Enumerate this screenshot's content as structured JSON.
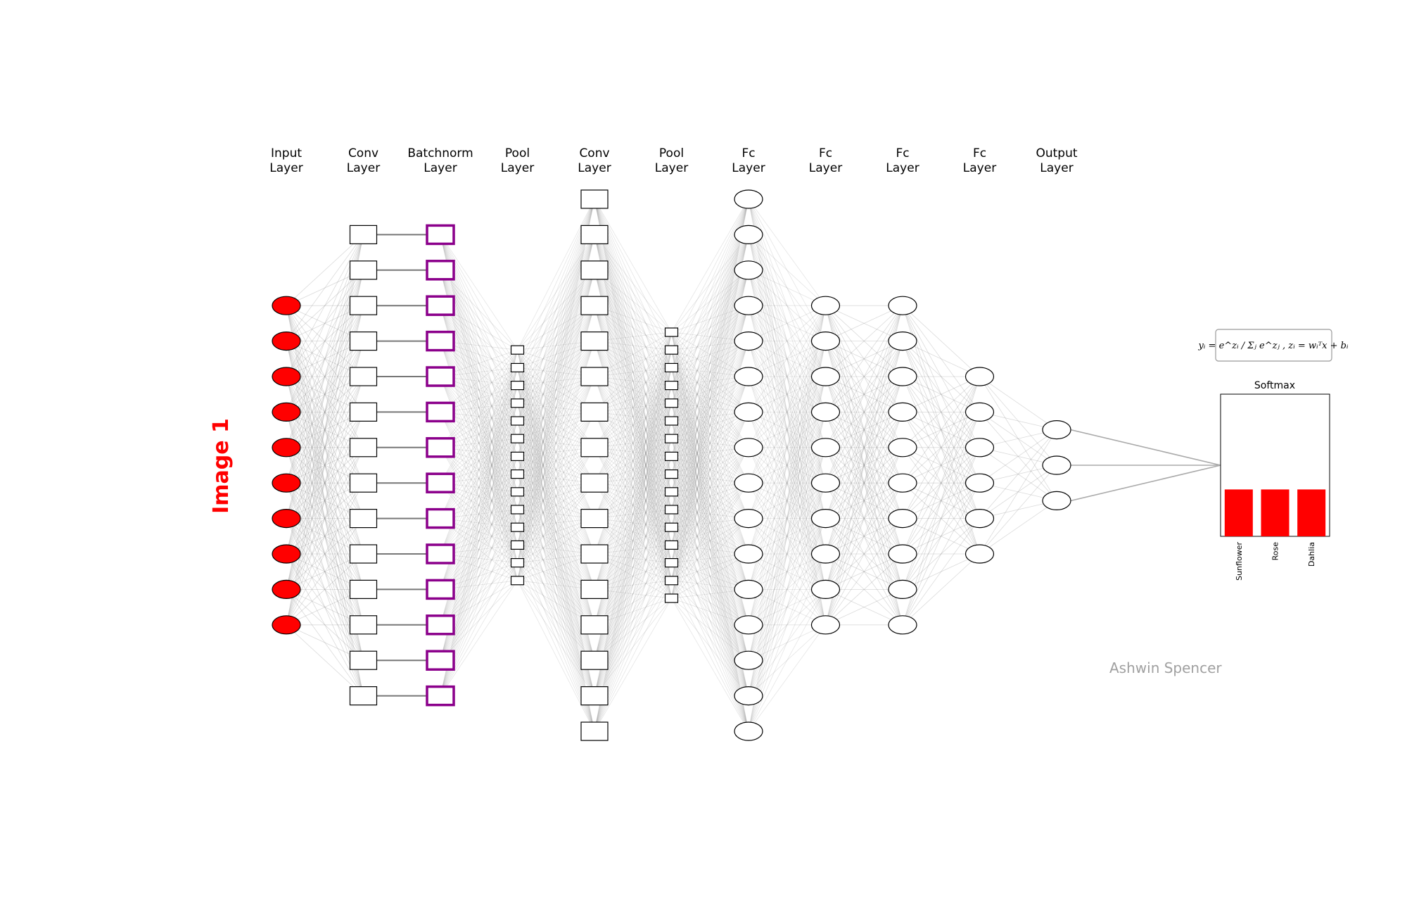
{
  "side_label": "Image 1",
  "watermark": "Ashwin Spencer",
  "colors": {
    "input_fill": "#ff0000",
    "batchnorm_stroke": "#8b008b",
    "edge": "#888888",
    "label_red": "#ff0000",
    "watermark": "#a0a0a0",
    "bar": "#ff0000"
  },
  "layers": [
    {
      "title": [
        "Input",
        "Layer"
      ],
      "shape": "ellipse-filled",
      "count": 10
    },
    {
      "title": [
        "Conv",
        "Layer"
      ],
      "shape": "rect",
      "count": 14
    },
    {
      "title": [
        "Batchnorm",
        "Layer"
      ],
      "shape": "rect-batchnorm",
      "count": 14
    },
    {
      "title": [
        "Pool",
        "Layer"
      ],
      "shape": "rect-small",
      "count": 14
    },
    {
      "title": [
        "Conv",
        "Layer"
      ],
      "shape": "rect",
      "count": 16
    },
    {
      "title": [
        "Pool",
        "Layer"
      ],
      "shape": "rect-small",
      "count": 16
    },
    {
      "title": [
        "Fc",
        "Layer"
      ],
      "shape": "ellipse",
      "count": 16
    },
    {
      "title": [
        "Fc",
        "Layer"
      ],
      "shape": "ellipse",
      "count": 10
    },
    {
      "title": [
        "Fc",
        "Layer"
      ],
      "shape": "ellipse",
      "count": 10
    },
    {
      "title": [
        "Fc",
        "Layer"
      ],
      "shape": "ellipse",
      "count": 6
    },
    {
      "title": [
        "Output",
        "Layer"
      ],
      "shape": "ellipse",
      "count": 3
    }
  ],
  "softmax": {
    "title": "Softmax",
    "formula": "yᵢ = e^zᵢ / Σⱼ e^zⱼ ,    zᵢ = wᵢᵀx + bᵢ",
    "classes": [
      "Sunflower",
      "Rose",
      "Dahlia"
    ],
    "values": [
      0.333,
      0.333,
      0.333
    ]
  }
}
